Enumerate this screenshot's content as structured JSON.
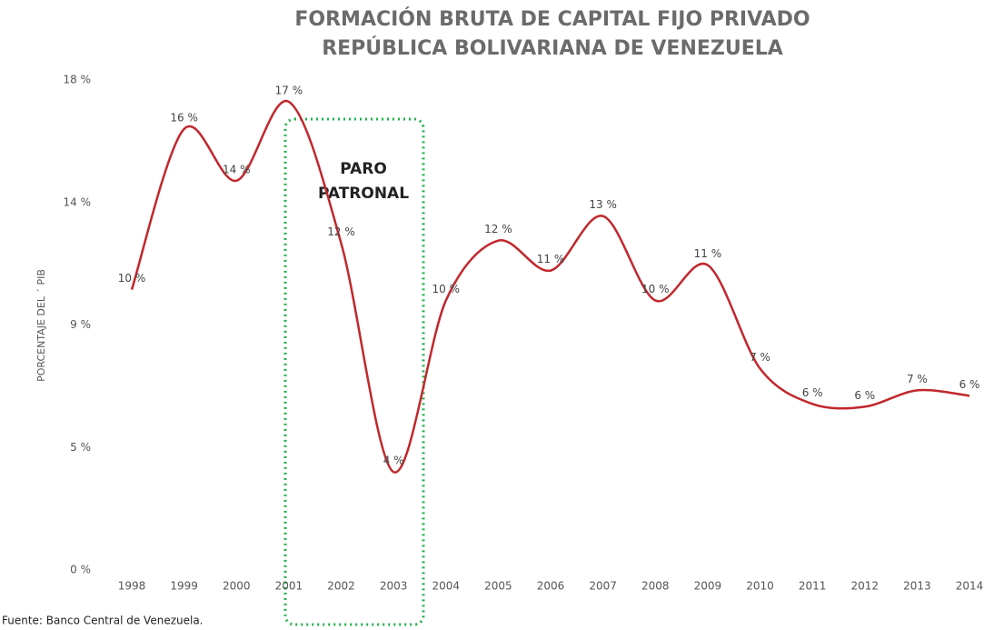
{
  "chart_data": {
    "type": "line",
    "title": "FORMACIÓN BRUTA DE CAPITAL FIJO PRIVADO",
    "subtitle": "REPÚBLICA BOLIVARIANA DE VENEZUELA",
    "y_label": "PORCENTAJE DEL ´ PIB",
    "annotation": [
      "PARO",
      "PATRONAL"
    ],
    "source": "Fuente: Banco Central de Venezuela.",
    "categories": [
      "1998",
      "1999",
      "2000",
      "2001",
      "2002",
      "2003",
      "2004",
      "2005",
      "2006",
      "2007",
      "2008",
      "2009",
      "2010",
      "2011",
      "2012",
      "2013",
      "2014"
    ],
    "series": [
      {
        "name": "Formación bruta de capital fijo privado",
        "color": "#c0282d",
        "values": [
          10.3,
          16.2,
          14.3,
          17.2,
          12.0,
          3.6,
          9.9,
          12.1,
          11.0,
          13.0,
          9.9,
          11.2,
          7.4,
          6.1,
          6.0,
          6.6,
          6.4
        ],
        "value_labels": [
          "10 %",
          "16 %",
          "14 %",
          "17 %",
          "12 %",
          "4 %",
          "10 %",
          "12 %",
          "11 %",
          "13 %",
          "10 %",
          "11 %",
          "7 %",
          "6 %",
          "6 %",
          "7 %",
          "6 %"
        ]
      }
    ],
    "ylim": [
      0,
      18
    ],
    "yticks": [
      {
        "value": 0,
        "label": "0 %"
      },
      {
        "value": 4.5,
        "label": "5 %"
      },
      {
        "value": 9,
        "label": "9 %"
      },
      {
        "value": 13.5,
        "label": "14 %"
      },
      {
        "value": 18,
        "label": "18 %"
      }
    ],
    "grid": false
  }
}
